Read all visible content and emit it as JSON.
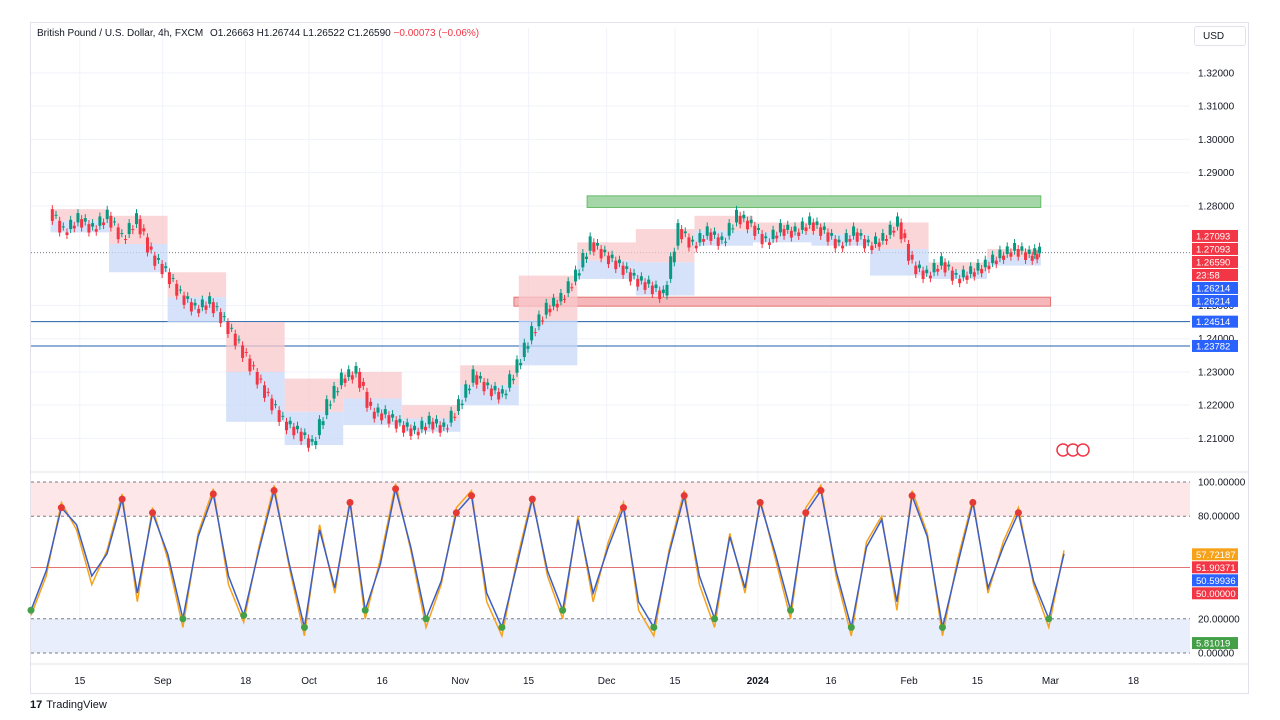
{
  "header": {
    "symbol": "British Pound / U.S. Dollar, 4h, FXCM",
    "o_label": "O",
    "o_value": "1.26663",
    "h_label": "H",
    "h_value": "1.26744",
    "l_label": "L",
    "l_value": "1.26522",
    "c_label": "C",
    "c_value": "1.26590",
    "change": "−0.00073 (−0.06%)"
  },
  "currency_button": "USD",
  "branding": {
    "logo_mark": "17",
    "name": "TradingView"
  },
  "colors": {
    "bull": "#089981",
    "bear": "#f23645",
    "oscillator_fast": "#f7a21b",
    "oscillator_slow": "#3d5fc4",
    "level_line": "#1f5fa8",
    "supply_zone": "#f8c8cc",
    "demand_zone": "#c7d8f8",
    "resistance_band": "#a5d6a7",
    "support_band": "#f5b7b9"
  },
  "chart_data": [
    {
      "type": "line",
      "title": "",
      "y_ticks": [
        "1.32000",
        "1.31000",
        "1.30000",
        "1.29000",
        "1.28000",
        "1.25000",
        "1.24000",
        "1.23000",
        "1.22000",
        "1.21000"
      ],
      "ylim": [
        1.2035,
        1.3275
      ],
      "x_ticks": [
        "15",
        "Sep",
        "18",
        "Oct",
        "16",
        "Nov",
        "15",
        "Dec",
        "15",
        "2024",
        "16",
        "Feb",
        "15",
        "Mar",
        "18"
      ],
      "x_tick_dates": [
        "2023-08-15",
        "2023-09-01",
        "2023-09-18",
        "2023-10-01",
        "2023-10-16",
        "2023-11-01",
        "2023-11-15",
        "2023-12-01",
        "2023-12-15",
        "2024-01-01",
        "2024-01-16",
        "2024-02-01",
        "2024-02-15",
        "2024-03-01",
        "2024-03-18"
      ],
      "series": [
        {
          "x": [
            "2023-08-09",
            "2023-08-12",
            "2023-08-15",
            "2023-08-18",
            "2023-08-21",
            "2023-08-24",
            "2023-08-27",
            "2023-08-30",
            "2023-09-02",
            "2023-09-05",
            "2023-09-08",
            "2023-09-11",
            "2023-09-14",
            "2023-09-17",
            "2023-09-20",
            "2023-09-23",
            "2023-09-26",
            "2023-09-29",
            "2023-10-02",
            "2023-10-05",
            "2023-10-08",
            "2023-10-11",
            "2023-10-14",
            "2023-10-17",
            "2023-10-20",
            "2023-10-23",
            "2023-10-26",
            "2023-10-29",
            "2023-11-01",
            "2023-11-04",
            "2023-11-07",
            "2023-11-10",
            "2023-11-13",
            "2023-11-16",
            "2023-11-19",
            "2023-11-22",
            "2023-11-25",
            "2023-11-28",
            "2023-12-01",
            "2023-12-04",
            "2023-12-07",
            "2023-12-10",
            "2023-12-13",
            "2023-12-16",
            "2023-12-19",
            "2023-12-22",
            "2023-12-25",
            "2023-12-28",
            "2023-12-31",
            "2024-01-03",
            "2024-01-06",
            "2024-01-09",
            "2024-01-12",
            "2024-01-15",
            "2024-01-18",
            "2024-01-21",
            "2024-01-24",
            "2024-01-27",
            "2024-01-30",
            "2024-02-02",
            "2024-02-05",
            "2024-02-08",
            "2024-02-11",
            "2024-02-14",
            "2024-02-17",
            "2024-02-20",
            "2024-02-23",
            "2024-02-26",
            "2024-02-28"
          ],
          "values": [
            1.279,
            1.272,
            1.276,
            1.273,
            1.277,
            1.27,
            1.276,
            1.265,
            1.26,
            1.253,
            1.249,
            1.251,
            1.245,
            1.238,
            1.23,
            1.222,
            1.215,
            1.212,
            1.208,
            1.22,
            1.228,
            1.23,
            1.218,
            1.217,
            1.214,
            1.212,
            1.215,
            1.213,
            1.22,
            1.229,
            1.225,
            1.223,
            1.232,
            1.242,
            1.249,
            1.252,
            1.259,
            1.269,
            1.265,
            1.262,
            1.258,
            1.256,
            1.253,
            1.273,
            1.268,
            1.272,
            1.269,
            1.277,
            1.274,
            1.269,
            1.273,
            1.272,
            1.275,
            1.272,
            1.268,
            1.272,
            1.268,
            1.27,
            1.275,
            1.262,
            1.259,
            1.263,
            1.258,
            1.26,
            1.262,
            1.265,
            1.267,
            1.265,
            1.2659
          ]
        }
      ],
      "price_labels": [
        {
          "text": "1.27093",
          "value": 1.27093,
          "color": "#f23645"
        },
        {
          "text": "1.27093",
          "value": 1.27093,
          "color": "#f23645"
        },
        {
          "text": "1.26590",
          "value": 1.2659,
          "color": "#f23645"
        },
        {
          "text": "23:58",
          "value": 1.2659,
          "color": "#f23645"
        },
        {
          "text": "1.26214",
          "value": 1.26214,
          "color": "#2962ff"
        },
        {
          "text": "1.26214",
          "value": 1.26214,
          "color": "#2962ff"
        },
        {
          "text": "1.24514",
          "value": 1.24514,
          "color": "#2962ff"
        },
        {
          "text": "1.23782",
          "value": 1.23782,
          "color": "#2962ff"
        }
      ],
      "horizontal_levels": [
        1.24514,
        1.23782
      ],
      "resistance_zone": {
        "from": "2023-11-27",
        "to": "2024-02-28",
        "low": 1.2795,
        "high": 1.283
      },
      "support_zone": {
        "from": "2023-11-12",
        "to": "2024-03-01",
        "low": 1.2498,
        "high": 1.2525
      },
      "event_icons": 3
    },
    {
      "type": "line",
      "title": "",
      "y_ticks": [
        "100.00000",
        "80.00000",
        "20.00000",
        "0.00000"
      ],
      "ylim": [
        0,
        100
      ],
      "overbought": [
        80,
        100
      ],
      "oversold": [
        0,
        20
      ],
      "midline": 50,
      "series": [
        {
          "name": "",
          "values": [
            22,
            45,
            88,
            72,
            40,
            60,
            93,
            30,
            85,
            55,
            15,
            70,
            96,
            40,
            18,
            62,
            98,
            50,
            10,
            75,
            35,
            90,
            20,
            55,
            99,
            60,
            15,
            40,
            85,
            95,
            30,
            10,
            55,
            92,
            45,
            20,
            80,
            30,
            65,
            88,
            25,
            10,
            60,
            95,
            40,
            15,
            70,
            35,
            90,
            55,
            20,
            85,
            98,
            45,
            10,
            65,
            80,
            25,
            95,
            70,
            10,
            55,
            90,
            35,
            65,
            85,
            40,
            15,
            60
          ]
        },
        {
          "name": "",
          "values": [
            25,
            48,
            85,
            75,
            45,
            58,
            90,
            35,
            82,
            58,
            20,
            68,
            93,
            45,
            22,
            60,
            95,
            52,
            15,
            72,
            38,
            88,
            25,
            52,
            96,
            62,
            20,
            42,
            82,
            92,
            35,
            15,
            52,
            90,
            48,
            25,
            78,
            35,
            62,
            85,
            30,
            15,
            58,
            92,
            45,
            20,
            68,
            38,
            88,
            58,
            25,
            82,
            95,
            48,
            15,
            62,
            78,
            30,
            92,
            68,
            15,
            52,
            88,
            38,
            62,
            82,
            42,
            20,
            58
          ]
        }
      ],
      "value_labels": [
        {
          "text": "57.72187",
          "value": 57.72187,
          "color": "#f7a21b"
        },
        {
          "text": "51.90371",
          "value": 51.90371,
          "color": "#f23645"
        },
        {
          "text": "50.59936",
          "value": 50.59936,
          "color": "#2962ff"
        },
        {
          "text": "50.00000",
          "value": 50,
          "color": "#f23645"
        },
        {
          "text": "5.81019",
          "value": 5.81019,
          "color": "#43a047"
        }
      ]
    }
  ]
}
